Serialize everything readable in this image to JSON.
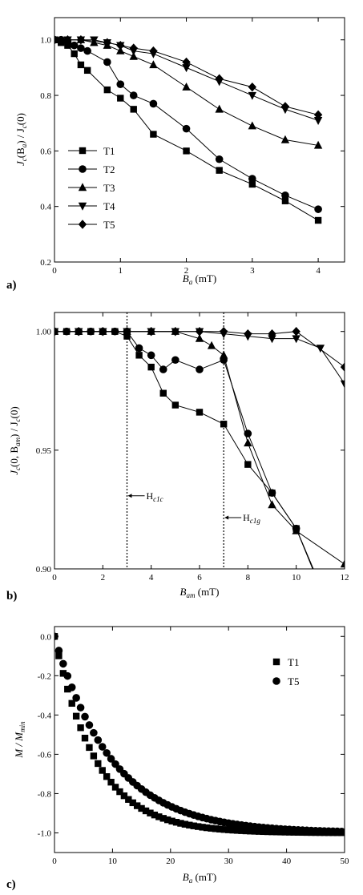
{
  "chart_data": [
    {
      "panel": "a)",
      "type": "line",
      "marker_style": "line-with-markers",
      "ylabel": "J_c(B_a) / J_c(0)",
      "ylabel_parts": {
        "main": "J",
        "sub1": "c",
        "mid": "(B",
        "sub2": "a",
        "end": ") / J",
        "sub3": "c",
        "tail": "(0)"
      },
      "xlabel_parts": {
        "main": "B",
        "sub": "a",
        "unit": " (mT)"
      },
      "xlim": [
        0,
        4.4
      ],
      "ylim": [
        0.2,
        1.08
      ],
      "xticks": [
        0,
        1,
        2,
        3,
        4
      ],
      "xtick_labels": [
        "0",
        "1",
        "2",
        "3",
        "4"
      ],
      "yticks": [
        0.2,
        0.4,
        0.6,
        0.8,
        1.0
      ],
      "ytick_labels": [
        "0.2",
        "0.4",
        "0.6",
        "0.8",
        "1.0"
      ],
      "legend": "left-middle",
      "series": [
        {
          "name": "T1",
          "marker": "square",
          "x": [
            0,
            0.1,
            0.2,
            0.3,
            0.4,
            0.5,
            0.8,
            1.0,
            1.2,
            1.5,
            2.0,
            2.5,
            3.0,
            3.5,
            4.0
          ],
          "y": [
            1.0,
            0.99,
            0.98,
            0.95,
            0.91,
            0.89,
            0.82,
            0.79,
            0.75,
            0.66,
            0.6,
            0.53,
            0.48,
            0.42,
            0.35
          ]
        },
        {
          "name": "T2",
          "marker": "circle",
          "x": [
            0,
            0.1,
            0.2,
            0.3,
            0.4,
            0.5,
            0.8,
            1.0,
            1.2,
            1.5,
            2.0,
            2.5,
            3.0,
            3.5,
            4.0
          ],
          "y": [
            1.0,
            1.0,
            0.995,
            0.98,
            0.97,
            0.96,
            0.92,
            0.84,
            0.8,
            0.77,
            0.68,
            0.57,
            0.5,
            0.44,
            0.39
          ]
        },
        {
          "name": "T3",
          "marker": "triangle-up",
          "x": [
            0,
            0.2,
            0.4,
            0.6,
            0.8,
            1.0,
            1.2,
            1.5,
            2.0,
            2.5,
            3.0,
            3.5,
            4.0
          ],
          "y": [
            1.0,
            1.0,
            1.0,
            0.99,
            0.98,
            0.96,
            0.94,
            0.91,
            0.83,
            0.75,
            0.69,
            0.64,
            0.62
          ]
        },
        {
          "name": "T4",
          "marker": "triangle-down",
          "x": [
            0,
            0.2,
            0.4,
            0.6,
            0.8,
            1.0,
            1.2,
            1.5,
            2.0,
            2.5,
            3.0,
            3.5,
            4.0
          ],
          "y": [
            1.0,
            1.0,
            1.0,
            1.0,
            0.99,
            0.98,
            0.96,
            0.95,
            0.9,
            0.85,
            0.8,
            0.75,
            0.71
          ]
        },
        {
          "name": "T5",
          "marker": "diamond",
          "x": [
            0,
            0.2,
            0.4,
            0.8,
            1.0,
            1.2,
            1.5,
            2.0,
            2.5,
            3.0,
            3.5,
            4.0
          ],
          "y": [
            1.0,
            1.0,
            1.0,
            0.99,
            0.98,
            0.97,
            0.96,
            0.92,
            0.86,
            0.83,
            0.76,
            0.73
          ]
        }
      ]
    },
    {
      "panel": "b)",
      "type": "line",
      "marker_style": "line-with-markers",
      "ylabel_parts": {
        "main": "J",
        "sub1": "c",
        "mid": "(0, B",
        "sub2": "am",
        "end": ") / J",
        "sub3": "c",
        "tail": "(0)"
      },
      "xlabel_parts": {
        "main": "B",
        "sub": "am",
        "unit": " (mT)"
      },
      "xlim": [
        0,
        12
      ],
      "ylim": [
        0.9,
        1.008
      ],
      "xticks": [
        0,
        2,
        4,
        6,
        8,
        10,
        12
      ],
      "xtick_labels": [
        "0",
        "2",
        "4",
        "6",
        "8",
        "10",
        "12"
      ],
      "yticks": [
        0.9,
        0.95,
        1.0
      ],
      "ytick_labels": [
        "0.90",
        "0.95",
        "1.00"
      ],
      "annotations": [
        {
          "x": 3,
          "main": "H",
          "sub": "c1c"
        },
        {
          "x": 7,
          "main": "H",
          "sub": "c1g"
        }
      ],
      "series": [
        {
          "name": "T1",
          "marker": "square",
          "x": [
            0,
            0.5,
            1,
            1.5,
            2,
            2.5,
            3,
            3.5,
            4,
            4.5,
            5,
            6,
            7,
            8,
            9,
            10,
            11
          ],
          "y": [
            1.0,
            1.0,
            1.0,
            1.0,
            1.0,
            1.0,
            0.998,
            0.99,
            0.985,
            0.974,
            0.969,
            0.966,
            0.961,
            0.944,
            0.932,
            0.917,
            0.893
          ]
        },
        {
          "name": "T2",
          "marker": "circle",
          "x": [
            0,
            0.5,
            1,
            1.5,
            2,
            2.5,
            3,
            3.5,
            4,
            4.5,
            5,
            6,
            7,
            8,
            9,
            10,
            10.8
          ],
          "y": [
            1.0,
            1.0,
            1.0,
            1.0,
            1.0,
            1.0,
            1.0,
            0.993,
            0.99,
            0.984,
            0.988,
            0.984,
            0.988,
            0.957,
            0.932,
            0.917,
            0.897
          ]
        },
        {
          "name": "T3",
          "marker": "triangle-up",
          "x": [
            0,
            1,
            2,
            3,
            4,
            5,
            6,
            6.5,
            7,
            8,
            9,
            10,
            12
          ],
          "y": [
            1.0,
            1.0,
            1.0,
            1.0,
            1.0,
            1.0,
            0.997,
            0.994,
            0.99,
            0.953,
            0.927,
            0.916,
            0.902
          ]
        },
        {
          "name": "T4",
          "marker": "triangle-down",
          "x": [
            0,
            1,
            2,
            3,
            4,
            5,
            6,
            7,
            8,
            9,
            10,
            11,
            12
          ],
          "y": [
            1.0,
            1.0,
            1.0,
            1.0,
            1.0,
            1.0,
            1.0,
            0.999,
            0.998,
            0.997,
            0.997,
            0.993,
            0.978
          ]
        },
        {
          "name": "T5",
          "marker": "diamond",
          "x": [
            0,
            1,
            2,
            3,
            4,
            5,
            6,
            7,
            8,
            9,
            10,
            12
          ],
          "y": [
            1.0,
            1.0,
            1.0,
            1.0,
            1.0,
            1.0,
            1.0,
            1.0,
            0.999,
            0.999,
            1.0,
            0.985
          ]
        }
      ]
    },
    {
      "panel": "c)",
      "type": "scatter",
      "ylabel_parts": {
        "main": "M / M",
        "sub": "min"
      },
      "xlabel_parts": {
        "main": "B",
        "sub": "a",
        "unit": " (mT)"
      },
      "xlim": [
        0,
        50
      ],
      "ylim": [
        -1.1,
        0.05
      ],
      "xticks": [
        0,
        10,
        20,
        30,
        40,
        50
      ],
      "xtick_labels": [
        "0",
        "10",
        "20",
        "30",
        "40",
        "50"
      ],
      "yticks": [
        0.0,
        -0.2,
        -0.4,
        -0.6,
        -0.8,
        -1.0
      ],
      "ytick_labels": [
        "0.0",
        "-0.2",
        "-0.4",
        "-0.6",
        "-0.8",
        "-1.0"
      ],
      "legend": "top-right",
      "series": [
        {
          "name": "T1",
          "marker": "square",
          "model": {
            "form": "-1 + exp(-x/tau)",
            "tau": 7.2,
            "xmin": 0,
            "xmax": 50,
            "step": 0.75
          }
        },
        {
          "name": "T5",
          "marker": "circle",
          "model": {
            "form": "-1 + exp(-x/tau)",
            "tau": 10.0,
            "xmin": 0,
            "xmax": 50,
            "step": 0.75
          }
        }
      ]
    }
  ],
  "panel_labels": [
    "a)",
    "b)",
    "c)"
  ]
}
